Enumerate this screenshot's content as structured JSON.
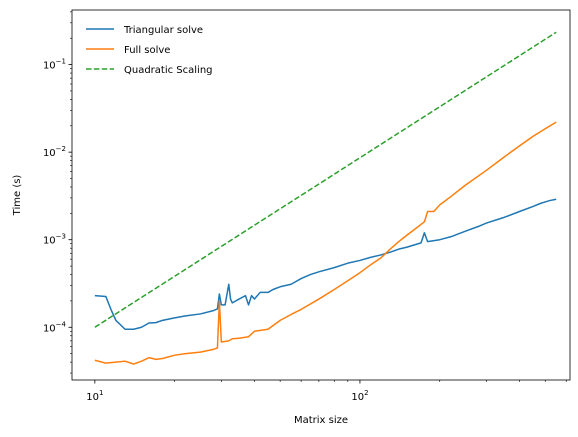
{
  "chart_data": {
    "type": "line",
    "xlabel": "Matrix size",
    "ylabel": "Time (s)",
    "x_scale": "log",
    "y_scale": "log",
    "xlim": [
      8.2,
      620
    ],
    "ylim": [
      2.5e-05,
      0.42
    ],
    "grid": false,
    "legend_position": "top-left",
    "x_ticks": [
      {
        "value": 10,
        "base": "10",
        "exp": "1"
      },
      {
        "value": 100,
        "base": "10",
        "exp": "2"
      }
    ],
    "y_ticks": [
      {
        "value": 0.0001,
        "base": "10",
        "exp": "−4"
      },
      {
        "value": 0.001,
        "base": "10",
        "exp": "−3"
      },
      {
        "value": 0.01,
        "base": "10",
        "exp": "−2"
      },
      {
        "value": 0.1,
        "base": "10",
        "exp": "−1"
      }
    ],
    "series": [
      {
        "name": "Triangular solve",
        "color": "#1f77b4",
        "dash": "solid",
        "x": [
          10,
          11,
          11.5,
          12,
          13,
          14,
          15,
          16,
          17,
          18,
          20,
          22,
          25,
          28,
          29,
          29.5,
          30,
          31,
          32,
          32.5,
          33,
          35,
          37,
          38,
          39,
          40,
          42,
          45,
          47,
          50,
          55,
          60,
          65,
          70,
          80,
          90,
          100,
          110,
          120,
          130,
          140,
          150,
          160,
          170,
          175,
          180,
          200,
          220,
          250,
          280,
          300,
          350,
          400,
          450,
          480,
          500,
          520,
          550
        ],
        "y": [
          0.00023,
          0.000225,
          0.00016,
          0.00012,
          9.5e-05,
          9.5e-05,
          0.0001,
          0.000112,
          0.000113,
          0.00012,
          0.000128,
          0.000135,
          0.000142,
          0.000155,
          0.000162,
          0.00024,
          0.00018,
          0.00018,
          0.00031,
          0.00021,
          0.00019,
          0.00021,
          0.00023,
          0.00018,
          0.00023,
          0.00021,
          0.00025,
          0.00025,
          0.00027,
          0.00029,
          0.00031,
          0.00036,
          0.0004,
          0.00043,
          0.00048,
          0.00054,
          0.00058,
          0.00063,
          0.00067,
          0.00072,
          0.00078,
          0.00082,
          0.00087,
          0.00092,
          0.0012,
          0.00095,
          0.001,
          0.00108,
          0.00125,
          0.00142,
          0.00155,
          0.0018,
          0.0021,
          0.0024,
          0.0026,
          0.0027,
          0.0028,
          0.0029
        ]
      },
      {
        "name": "Full solve",
        "color": "#ff7f0e",
        "dash": "solid",
        "x": [
          10,
          11,
          12,
          13,
          14,
          15,
          16,
          17,
          18,
          20,
          22,
          25,
          28,
          29,
          29.5,
          30,
          32,
          33,
          35,
          38,
          40,
          45,
          50,
          55,
          60,
          70,
          80,
          90,
          100,
          110,
          120,
          130,
          140,
          150,
          160,
          175,
          180,
          190,
          200,
          220,
          250,
          300,
          350,
          400,
          450,
          500,
          550
        ],
        "y": [
          4.2e-05,
          3.9e-05,
          4e-05,
          4.1e-05,
          3.8e-05,
          4.1e-05,
          4.5e-05,
          4.3e-05,
          4.4e-05,
          4.8e-05,
          5e-05,
          5.2e-05,
          5.6e-05,
          5.8e-05,
          0.0002,
          6.8e-05,
          7e-05,
          7.4e-05,
          7.5e-05,
          7.8e-05,
          9e-05,
          9.5e-05,
          0.00012,
          0.00014,
          0.00016,
          0.00021,
          0.00027,
          0.00034,
          0.00042,
          0.00052,
          0.00062,
          0.00078,
          0.00095,
          0.00112,
          0.0013,
          0.0016,
          0.0021,
          0.0021,
          0.0025,
          0.0031,
          0.0042,
          0.0062,
          0.0088,
          0.0118,
          0.0152,
          0.0185,
          0.022
        ]
      },
      {
        "name": "Quadratic Scaling",
        "color": "#2ca02c",
        "dash": "dashed",
        "x": [
          10,
          550
        ],
        "y": [
          0.0001,
          0.234
        ]
      }
    ]
  }
}
